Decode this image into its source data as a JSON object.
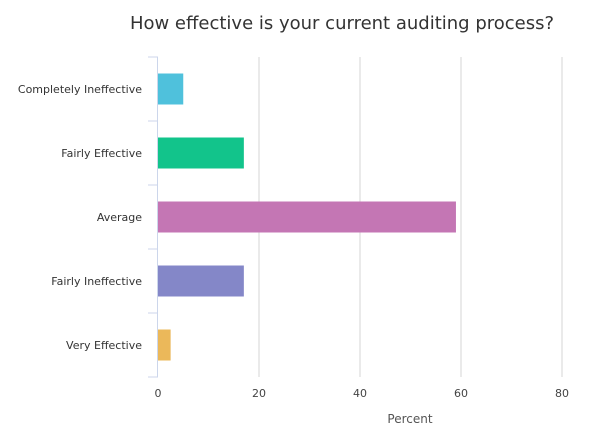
{
  "chart_data": {
    "type": "bar",
    "orientation": "horizontal",
    "title": "How effective is your current auditing process?",
    "xlabel": "Percent",
    "ylabel": "",
    "xlim": [
      0,
      80
    ],
    "xticks": [
      0,
      20,
      40,
      60,
      80
    ],
    "grid": true,
    "categories": [
      "Completely Ineffective",
      "Fairly Effective",
      "Average",
      "Fairly Ineffective",
      "Very Effective"
    ],
    "values": [
      5,
      17,
      59,
      17,
      2.5
    ],
    "colors": [
      "#4fc1dc",
      "#12c48b",
      "#c476b4",
      "#8487c8",
      "#ebb85a"
    ]
  }
}
